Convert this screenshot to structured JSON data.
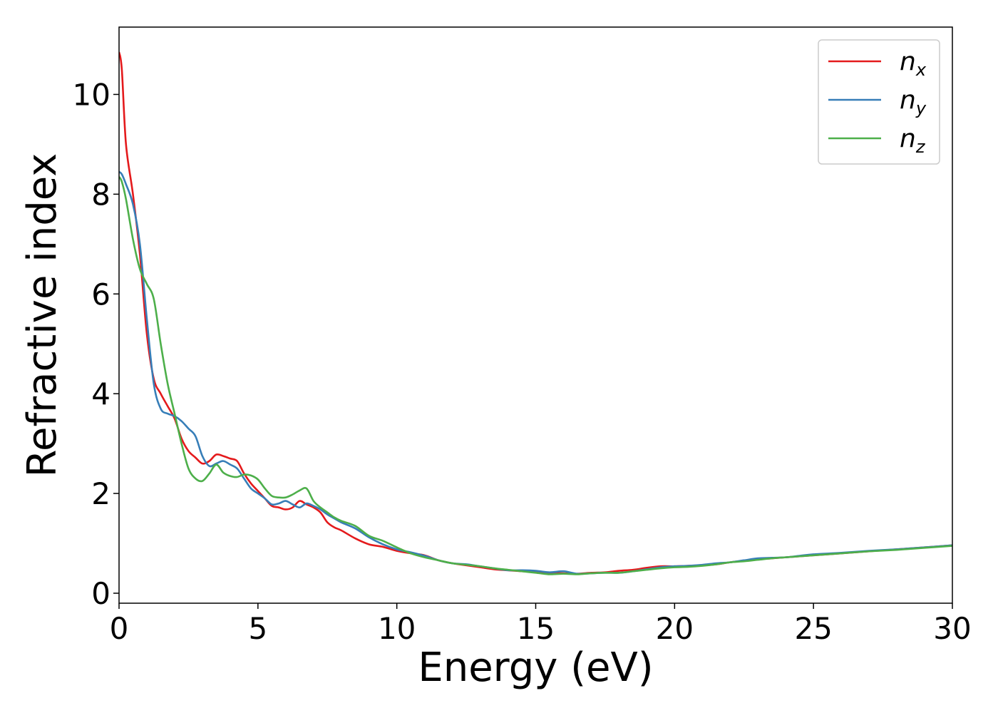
{
  "chart_data": {
    "type": "line",
    "xlabel": "Energy (eV)",
    "ylabel": "Refractive index",
    "xlim": [
      0,
      30
    ],
    "ylim": [
      -0.2,
      11.35
    ],
    "xticks": [
      0,
      5,
      10,
      15,
      20,
      25,
      30
    ],
    "xtick_labels": [
      "0",
      "5",
      "10",
      "15",
      "20",
      "25",
      "30"
    ],
    "yticks": [
      0,
      2,
      4,
      6,
      8,
      10
    ],
    "ytick_labels": [
      "0",
      "2",
      "4",
      "6",
      "8",
      "10"
    ],
    "grid": false,
    "legend_position": "top-right",
    "series": [
      {
        "name": "n",
        "subscript": "x",
        "color": "#e41a1c",
        "x": [
          0,
          0.1,
          0.25,
          0.5,
          0.75,
          1.0,
          1.25,
          1.5,
          1.75,
          2.0,
          2.25,
          2.5,
          2.75,
          3.0,
          3.25,
          3.5,
          3.75,
          4.0,
          4.25,
          4.5,
          4.75,
          5.0,
          5.25,
          5.5,
          5.75,
          6.0,
          6.25,
          6.5,
          6.75,
          7.0,
          7.25,
          7.5,
          7.75,
          8.0,
          8.5,
          9.0,
          9.5,
          10.0,
          10.5,
          11.0,
          11.5,
          12.0,
          12.5,
          13.0,
          13.5,
          14.0,
          14.5,
          15.0,
          15.5,
          16.0,
          16.5,
          17.0,
          17.5,
          18.0,
          18.5,
          19.0,
          19.5,
          20.0,
          20.5,
          21.0,
          21.5,
          22.0,
          22.5,
          23.0,
          23.5,
          24.0,
          24.5,
          25.0,
          26.0,
          27.0,
          28.0,
          29.0,
          30.0
        ],
        "values": [
          10.85,
          10.5,
          9.0,
          8.0,
          6.8,
          5.2,
          4.3,
          4.0,
          3.75,
          3.5,
          3.1,
          2.85,
          2.72,
          2.6,
          2.65,
          2.78,
          2.75,
          2.7,
          2.65,
          2.4,
          2.2,
          2.05,
          1.9,
          1.75,
          1.72,
          1.68,
          1.72,
          1.85,
          1.78,
          1.72,
          1.62,
          1.42,
          1.32,
          1.26,
          1.1,
          0.98,
          0.93,
          0.85,
          0.8,
          0.76,
          0.66,
          0.6,
          0.56,
          0.52,
          0.48,
          0.46,
          0.44,
          0.43,
          0.41,
          0.4,
          0.39,
          0.41,
          0.42,
          0.45,
          0.47,
          0.51,
          0.54,
          0.54,
          0.55,
          0.56,
          0.58,
          0.62,
          0.65,
          0.68,
          0.7,
          0.72,
          0.74,
          0.76,
          0.8,
          0.84,
          0.88,
          0.92,
          0.96
        ]
      },
      {
        "name": "n",
        "subscript": "y",
        "color": "#377eb8",
        "x": [
          0,
          0.1,
          0.25,
          0.5,
          0.75,
          1.0,
          1.25,
          1.5,
          1.75,
          2.0,
          2.25,
          2.5,
          2.75,
          3.0,
          3.25,
          3.5,
          3.75,
          4.0,
          4.25,
          4.5,
          4.75,
          5.0,
          5.25,
          5.5,
          5.75,
          6.0,
          6.25,
          6.5,
          6.75,
          7.0,
          7.25,
          7.5,
          7.75,
          8.0,
          8.5,
          9.0,
          9.5,
          10.0,
          10.5,
          11.0,
          11.5,
          12.0,
          12.5,
          13.0,
          13.5,
          14.0,
          14.5,
          15.0,
          15.5,
          16.0,
          16.5,
          17.0,
          17.5,
          18.0,
          18.5,
          19.0,
          19.5,
          20.0,
          20.5,
          21.0,
          21.5,
          22.0,
          22.5,
          23.0,
          23.5,
          24.0,
          24.5,
          25.0,
          26.0,
          27.0,
          28.0,
          29.0,
          30.0
        ],
        "values": [
          8.45,
          8.4,
          8.2,
          7.8,
          7.0,
          5.5,
          4.2,
          3.7,
          3.6,
          3.55,
          3.45,
          3.3,
          3.15,
          2.75,
          2.55,
          2.6,
          2.65,
          2.58,
          2.5,
          2.3,
          2.1,
          2.0,
          1.9,
          1.78,
          1.8,
          1.85,
          1.78,
          1.72,
          1.8,
          1.75,
          1.68,
          1.58,
          1.5,
          1.42,
          1.3,
          1.12,
          0.98,
          0.88,
          0.82,
          0.75,
          0.66,
          0.6,
          0.58,
          0.54,
          0.5,
          0.46,
          0.46,
          0.45,
          0.42,
          0.44,
          0.39,
          0.4,
          0.41,
          0.41,
          0.44,
          0.48,
          0.52,
          0.54,
          0.55,
          0.57,
          0.6,
          0.62,
          0.66,
          0.7,
          0.71,
          0.72,
          0.75,
          0.78,
          0.81,
          0.85,
          0.88,
          0.92,
          0.96
        ]
      },
      {
        "name": "n",
        "subscript": "z",
        "color": "#4daf4a",
        "x": [
          0,
          0.1,
          0.25,
          0.5,
          0.75,
          1.0,
          1.25,
          1.5,
          1.75,
          2.0,
          2.25,
          2.5,
          2.75,
          3.0,
          3.25,
          3.5,
          3.75,
          4.0,
          4.25,
          4.5,
          4.75,
          5.0,
          5.25,
          5.5,
          5.75,
          6.0,
          6.25,
          6.5,
          6.75,
          7.0,
          7.25,
          7.5,
          7.75,
          8.0,
          8.5,
          9.0,
          9.5,
          10.0,
          10.5,
          11.0,
          11.5,
          12.0,
          12.5,
          13.0,
          13.5,
          14.0,
          14.5,
          15.0,
          15.5,
          16.0,
          16.5,
          17.0,
          17.5,
          18.0,
          18.5,
          19.0,
          19.5,
          20.0,
          20.5,
          21.0,
          21.5,
          22.0,
          22.5,
          23.0,
          23.5,
          24.0,
          24.5,
          25.0,
          26.0,
          27.0,
          28.0,
          29.0,
          30.0
        ],
        "values": [
          8.35,
          8.25,
          7.9,
          7.1,
          6.5,
          6.2,
          5.9,
          5.0,
          4.2,
          3.6,
          3.0,
          2.5,
          2.3,
          2.25,
          2.4,
          2.58,
          2.42,
          2.35,
          2.33,
          2.38,
          2.36,
          2.28,
          2.1,
          1.95,
          1.92,
          1.92,
          1.98,
          2.06,
          2.1,
          1.85,
          1.72,
          1.62,
          1.52,
          1.45,
          1.35,
          1.15,
          1.05,
          0.92,
          0.8,
          0.72,
          0.66,
          0.6,
          0.57,
          0.54,
          0.5,
          0.47,
          0.44,
          0.41,
          0.38,
          0.39,
          0.38,
          0.4,
          0.41,
          0.41,
          0.44,
          0.47,
          0.5,
          0.52,
          0.53,
          0.55,
          0.58,
          0.62,
          0.64,
          0.67,
          0.7,
          0.72,
          0.74,
          0.76,
          0.8,
          0.84,
          0.87,
          0.91,
          0.95
        ]
      }
    ]
  }
}
